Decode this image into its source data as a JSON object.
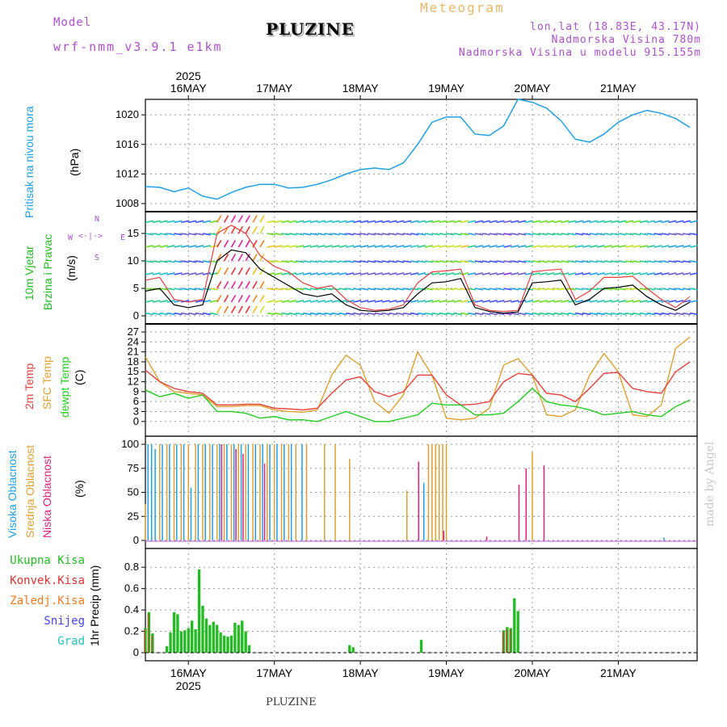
{
  "header": {
    "model_label": "Model",
    "model_name": "wrf-nmm_v3.9.1 e1km",
    "title": "PLUZINE",
    "meteogram_label": "Meteogram",
    "coords": "lon,lat (18.83E, 43.17N)",
    "elevation": "Nadmorska Visina 780m",
    "model_elevation": "Nadmorska Visina u modelu 915.155m",
    "footer": "PLUZINE",
    "watermark": "made by Angel"
  },
  "colors": {
    "pressure": "#1ea0e6",
    "temp2m": "#e8403a",
    "sfc": "#e0a030",
    "dewpt": "#22cc22",
    "high_cloud": "#1ea0e6",
    "mid_cloud": "#e0a030",
    "low_cloud": "#e0207a",
    "total_precip": "#22bb22",
    "conv_precip": "#e03030",
    "frozen": "#f07820",
    "snow": "#4444ee",
    "graupel": "#22c0c0",
    "speed_mean": "#000000",
    "gust": "#e84040"
  },
  "axes": {
    "year_top": "2025",
    "year_bottom": "2025",
    "date_ticks": [
      "16MAY",
      "17MAY",
      "18MAY",
      "19MAY",
      "20MAY",
      "21MAY"
    ]
  },
  "labels": {
    "pressure": [
      "Pritisak na nivou mora",
      "(hPa)"
    ],
    "wind": [
      "10m Vjetar",
      "Brzina i Pravac",
      "(m/s)"
    ],
    "compass": [
      "N",
      "W",
      "E",
      "S"
    ],
    "temp": [
      "2m Temp",
      "SFC Temp",
      "dewpt Temp",
      "(C)"
    ],
    "cloud": [
      "Visoka Oblacnost",
      "Srednja Oblacnost",
      "Niska Oblacnost",
      "(%)"
    ],
    "precip": [
      "Ukupna Kisa",
      "Konvek.Kisa",
      "Zaledj.Kisa",
      "Snijeg",
      "Grad",
      "1hr Precip (mm)"
    ]
  },
  "chart_data": [
    {
      "type": "line",
      "name": "pressure",
      "ylabel": "(hPa)",
      "ylim": [
        1008,
        1021
      ],
      "yticks": [
        1008,
        1012,
        1016,
        1020
      ],
      "x_hours": [
        0,
        4,
        8,
        12,
        16,
        20,
        24,
        28,
        32,
        36,
        40,
        44,
        48,
        52,
        56,
        60,
        64,
        68,
        72,
        76,
        80,
        84,
        88,
        92,
        96,
        100,
        104,
        108,
        112,
        116,
        120,
        124,
        128,
        132,
        136,
        140,
        144,
        148,
        152
      ],
      "series": [
        {
          "values": [
            1010.3,
            1010.2,
            1009.6,
            1010.1,
            1009.0,
            1008.6,
            1009.5,
            1010.2,
            1010.6,
            1010.6,
            1010.1,
            1010.2,
            1010.6,
            1011.2,
            1012.0,
            1012.6,
            1012.8,
            1012.6,
            1013.5,
            1016.0,
            1019.0,
            1019.7,
            1019.7,
            1017.4,
            1017.2,
            1018.5,
            1022.1,
            1021.7,
            1020.9,
            1019.2,
            1016.7,
            1016.3,
            1017.4,
            1019.0,
            1020.0,
            1020.6,
            1020.2,
            1019.5,
            1018.3
          ]
        }
      ]
    },
    {
      "type": "line",
      "name": "wind",
      "ylabel": "(m/s)",
      "ylim": [
        0,
        17.5
      ],
      "yticks": [
        0,
        5,
        10,
        15
      ],
      "x_hours": [
        0,
        4,
        8,
        12,
        16,
        20,
        24,
        28,
        32,
        36,
        40,
        44,
        48,
        52,
        56,
        60,
        64,
        68,
        72,
        76,
        80,
        84,
        88,
        92,
        96,
        100,
        104,
        108,
        112,
        116,
        120,
        124,
        128,
        132,
        136,
        140,
        144,
        148,
        152
      ],
      "series": [
        {
          "values": [
            4.5,
            5.0,
            2.0,
            1.5,
            2.0,
            10.0,
            12.0,
            11.5,
            8.5,
            7.0,
            5.5,
            4.0,
            3.5,
            4.0,
            2.0,
            1.0,
            0.8,
            1.0,
            1.5,
            4.0,
            6.0,
            6.2,
            6.8,
            1.5,
            0.8,
            0.5,
            0.7,
            6.0,
            6.2,
            6.5,
            2.0,
            3.0,
            5.0,
            5.2,
            5.6,
            3.5,
            2.0,
            1.0,
            2.5
          ]
        },
        {
          "values": [
            6.5,
            7.0,
            3.0,
            2.5,
            3.0,
            15.0,
            16.5,
            15.0,
            11.0,
            9.0,
            8.0,
            6.0,
            5.0,
            5.5,
            3.0,
            1.5,
            1.0,
            1.2,
            2.0,
            6.0,
            8.0,
            8.2,
            8.5,
            2.0,
            1.0,
            0.8,
            1.0,
            8.0,
            8.3,
            8.5,
            3.0,
            4.5,
            7.0,
            7.0,
            7.2,
            5.0,
            3.0,
            1.5,
            3.5
          ]
        }
      ]
    },
    {
      "type": "line",
      "name": "temperature",
      "ylabel": "(C)",
      "ylim": [
        -2,
        27
      ],
      "yticks": [
        0,
        3,
        6,
        9,
        12,
        15,
        18,
        21,
        24,
        27
      ],
      "x_hours": [
        0,
        4,
        8,
        12,
        16,
        20,
        24,
        28,
        32,
        36,
        40,
        44,
        48,
        52,
        56,
        60,
        64,
        68,
        72,
        76,
        80,
        84,
        88,
        92,
        96,
        100,
        104,
        108,
        112,
        116,
        120,
        124,
        128,
        132,
        136,
        140,
        144,
        148,
        152
      ],
      "series": [
        {
          "name": "2m Temp",
          "values": [
            15.5,
            12.0,
            10.0,
            9.0,
            8.5,
            5.0,
            5.0,
            5.2,
            5.2,
            4.0,
            3.8,
            3.5,
            4.0,
            8.5,
            12.5,
            13.5,
            9.0,
            7.5,
            9.0,
            14.0,
            14.0,
            8.0,
            5.0,
            5.2,
            6.0,
            12.0,
            14.5,
            14.0,
            8.5,
            8.0,
            6.0,
            10.0,
            14.5,
            14.8,
            10.0,
            9.0,
            8.5,
            15.0,
            18.0
          ]
        },
        {
          "name": "SFC Temp",
          "values": [
            19.5,
            12.0,
            9.0,
            8.5,
            8.0,
            4.5,
            4.5,
            4.8,
            4.8,
            3.5,
            3.0,
            2.8,
            3.5,
            14.0,
            20.0,
            17.0,
            6.0,
            2.5,
            8.0,
            21.0,
            14.0,
            1.0,
            0.5,
            1.0,
            4.0,
            17.0,
            19.0,
            14.0,
            2.0,
            1.5,
            3.5,
            14.0,
            20.5,
            15.0,
            2.0,
            1.5,
            5.0,
            22.0,
            25.5
          ]
        },
        {
          "name": "dewpt Temp",
          "values": [
            9.5,
            7.5,
            8.5,
            7.0,
            8.0,
            3.0,
            3.0,
            2.5,
            1.0,
            1.5,
            0.5,
            0.5,
            0.0,
            1.5,
            3.0,
            1.5,
            0.0,
            0.0,
            1.0,
            2.0,
            5.5,
            5.0,
            5.0,
            2.0,
            2.0,
            2.5,
            6.0,
            10.0,
            6.0,
            5.0,
            4.5,
            3.5,
            2.0,
            2.5,
            3.0,
            2.0,
            1.5,
            4.5,
            6.5
          ]
        }
      ]
    },
    {
      "type": "bar",
      "name": "cloud",
      "ylabel": "(%)",
      "ylim": [
        0,
        100
      ],
      "yticks": [
        0,
        25,
        50,
        75,
        100
      ],
      "series": [
        {
          "name": "Visoka Oblacnost",
          "bars": [
            [
              1,
              100
            ],
            [
              2,
              100
            ],
            [
              3,
              95
            ],
            [
              5,
              100
            ],
            [
              7,
              100
            ],
            [
              9,
              100
            ],
            [
              11,
              100
            ],
            [
              13,
              55
            ],
            [
              15,
              100
            ],
            [
              17,
              100
            ],
            [
              19,
              100
            ],
            [
              21,
              100
            ],
            [
              23,
              100
            ],
            [
              25,
              100
            ],
            [
              27,
              100
            ],
            [
              29,
              100
            ],
            [
              31,
              100
            ],
            [
              33,
              100
            ],
            [
              35,
              100
            ],
            [
              37,
              100
            ],
            [
              39,
              100
            ],
            [
              41,
              100
            ],
            [
              44,
              100
            ],
            [
              78,
              60
            ],
            [
              145,
              3
            ]
          ]
        },
        {
          "name": "Srednja Oblacnost",
          "bars": [
            [
              0,
              38
            ],
            [
              4,
              100
            ],
            [
              6,
              100
            ],
            [
              8,
              100
            ],
            [
              10,
              100
            ],
            [
              12,
              100
            ],
            [
              14,
              100
            ],
            [
              16,
              100
            ],
            [
              18,
              100
            ],
            [
              20,
              100
            ],
            [
              22,
              100
            ],
            [
              24,
              100
            ],
            [
              26,
              100
            ],
            [
              28,
              100
            ],
            [
              30,
              100
            ],
            [
              32,
              100
            ],
            [
              34,
              100
            ],
            [
              36,
              100
            ],
            [
              38,
              100
            ],
            [
              40,
              100
            ],
            [
              42,
              100
            ],
            [
              45,
              100
            ],
            [
              50,
              100
            ],
            [
              53,
              100
            ],
            [
              57,
              85
            ],
            [
              73,
              52
            ],
            [
              79,
              100
            ],
            [
              80,
              100
            ],
            [
              81,
              100
            ],
            [
              82,
              100
            ],
            [
              83,
              100
            ],
            [
              84,
              100
            ],
            [
              108,
              92
            ]
          ]
        },
        {
          "name": "Niska Oblacnost",
          "bars": [
            [
              21,
              100
            ],
            [
              25,
              95
            ],
            [
              27,
              90
            ],
            [
              33,
              80
            ],
            [
              76,
              82
            ],
            [
              83,
              10
            ],
            [
              95,
              4
            ],
            [
              104,
              58
            ],
            [
              106,
              75
            ],
            [
              111,
              78
            ]
          ]
        }
      ]
    },
    {
      "type": "bar",
      "name": "precip",
      "ylabel": "1hr Precip (mm)",
      "ylim": [
        0,
        0.9
      ],
      "yticks": [
        0.0,
        0.2,
        0.4,
        0.6,
        0.8
      ],
      "series": [
        {
          "name": "Ukupna Kisa",
          "bars": [
            [
              0,
              0.23
            ],
            [
              1,
              0.38
            ],
            [
              2,
              0.18
            ],
            [
              6,
              0.06
            ],
            [
              7,
              0.19
            ],
            [
              8,
              0.38
            ],
            [
              9,
              0.36
            ],
            [
              10,
              0.2
            ],
            [
              11,
              0.21
            ],
            [
              12,
              0.23
            ],
            [
              13,
              0.3
            ],
            [
              14,
              0.22
            ],
            [
              15,
              0.78
            ],
            [
              16,
              0.44
            ],
            [
              17,
              0.32
            ],
            [
              18,
              0.26
            ],
            [
              19,
              0.29
            ],
            [
              20,
              0.26
            ],
            [
              21,
              0.19
            ],
            [
              22,
              0.16
            ],
            [
              23,
              0.15
            ],
            [
              24,
              0.16
            ],
            [
              25,
              0.28
            ],
            [
              26,
              0.26
            ],
            [
              27,
              0.3
            ],
            [
              28,
              0.2
            ],
            [
              29,
              0.07
            ],
            [
              57,
              0.07
            ],
            [
              58,
              0.05
            ],
            [
              77,
              0.12
            ],
            [
              100,
              0.21
            ],
            [
              101,
              0.24
            ],
            [
              102,
              0.23
            ],
            [
              103,
              0.51
            ],
            [
              104,
              0.39
            ]
          ]
        },
        {
          "name": "Konvek.Kisa",
          "bars": [
            [
              0,
              0.22
            ],
            [
              1,
              0.36
            ],
            [
              2,
              0.16
            ],
            [
              100,
              0.2
            ],
            [
              101,
              0.22
            ],
            [
              102,
              0.22
            ]
          ]
        }
      ]
    }
  ]
}
